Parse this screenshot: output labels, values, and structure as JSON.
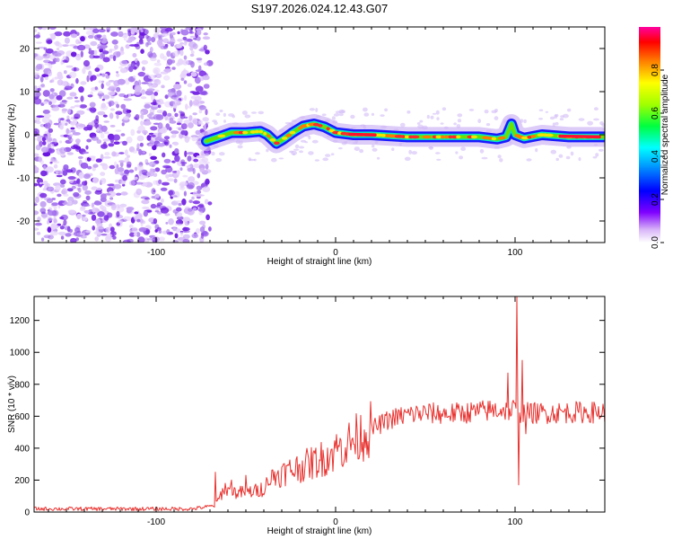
{
  "title": "S197.2026.024.12.43.G07",
  "chart_data": [
    {
      "type": "heatmap",
      "xlabel": "Height of straight line (km)",
      "ylabel": "Frequency (Hz)",
      "xlim": [
        -168,
        150
      ],
      "ylim": [
        -25,
        25
      ],
      "x_ticks": [
        -100,
        0,
        100
      ],
      "y_ticks": [
        -20,
        -10,
        0,
        10,
        20
      ],
      "colorbar": {
        "label": "Normalized spectral amplitude",
        "range": [
          0,
          1
        ],
        "ticks": [
          0.0,
          0.2,
          0.4,
          0.6,
          0.8
        ]
      },
      "noise_region_x": [
        -168,
        -72
      ],
      "ridge": [
        [
          -72,
          -1.5
        ],
        [
          -65,
          -0.5
        ],
        [
          -58,
          0.5
        ],
        [
          -50,
          0.5
        ],
        [
          -42,
          0.8
        ],
        [
          -38,
          0
        ],
        [
          -33,
          -2
        ],
        [
          -29,
          -1
        ],
        [
          -24,
          0.5
        ],
        [
          -18,
          2
        ],
        [
          -12,
          2.5
        ],
        [
          -6,
          1.8
        ],
        [
          0,
          0.5
        ],
        [
          10,
          0
        ],
        [
          20,
          0
        ],
        [
          40,
          -0.5
        ],
        [
          60,
          -0.5
        ],
        [
          80,
          -0.5
        ],
        [
          90,
          -1
        ],
        [
          95,
          -0.5
        ],
        [
          98,
          2.5
        ],
        [
          100,
          0
        ],
        [
          105,
          -0.8
        ],
        [
          115,
          0
        ],
        [
          130,
          -0.5
        ],
        [
          150,
          -0.5
        ]
      ]
    },
    {
      "type": "line",
      "xlabel": "Height of straight line (km)",
      "ylabel": "SNR (10 * v/v)",
      "xlim": [
        -168,
        150
      ],
      "ylim": [
        0,
        1350
      ],
      "x_ticks": [
        -100,
        0,
        100
      ],
      "y_ticks": [
        0,
        200,
        400,
        600,
        800,
        1000,
        1200
      ],
      "color": "#e8322f",
      "envelope": [
        [
          -168,
          20
        ],
        [
          -80,
          20
        ],
        [
          -67,
          40
        ],
        [
          -62,
          150
        ],
        [
          -55,
          120
        ],
        [
          -45,
          130
        ],
        [
          -40,
          150
        ],
        [
          -35,
          220
        ],
        [
          -28,
          250
        ],
        [
          -20,
          280
        ],
        [
          -10,
          320
        ],
        [
          0,
          380
        ],
        [
          10,
          450
        ],
        [
          20,
          520
        ],
        [
          30,
          580
        ],
        [
          40,
          610
        ],
        [
          50,
          620
        ],
        [
          60,
          615
        ],
        [
          70,
          620
        ],
        [
          80,
          630
        ],
        [
          90,
          640
        ],
        [
          95,
          640
        ],
        [
          105,
          620
        ],
        [
          115,
          620
        ],
        [
          130,
          625
        ],
        [
          150,
          625
        ]
      ],
      "spikes": [
        [
          -67,
          250
        ],
        [
          -58,
          200
        ],
        [
          -50,
          230
        ],
        [
          -38,
          200
        ],
        [
          -22,
          330
        ],
        [
          -14,
          280
        ],
        [
          0,
          400
        ],
        [
          96,
          870
        ],
        [
          99,
          700
        ],
        [
          101,
          1350
        ],
        [
          102,
          170
        ],
        [
          103,
          560
        ],
        [
          104,
          950
        ],
        [
          106,
          490
        ]
      ]
    }
  ]
}
